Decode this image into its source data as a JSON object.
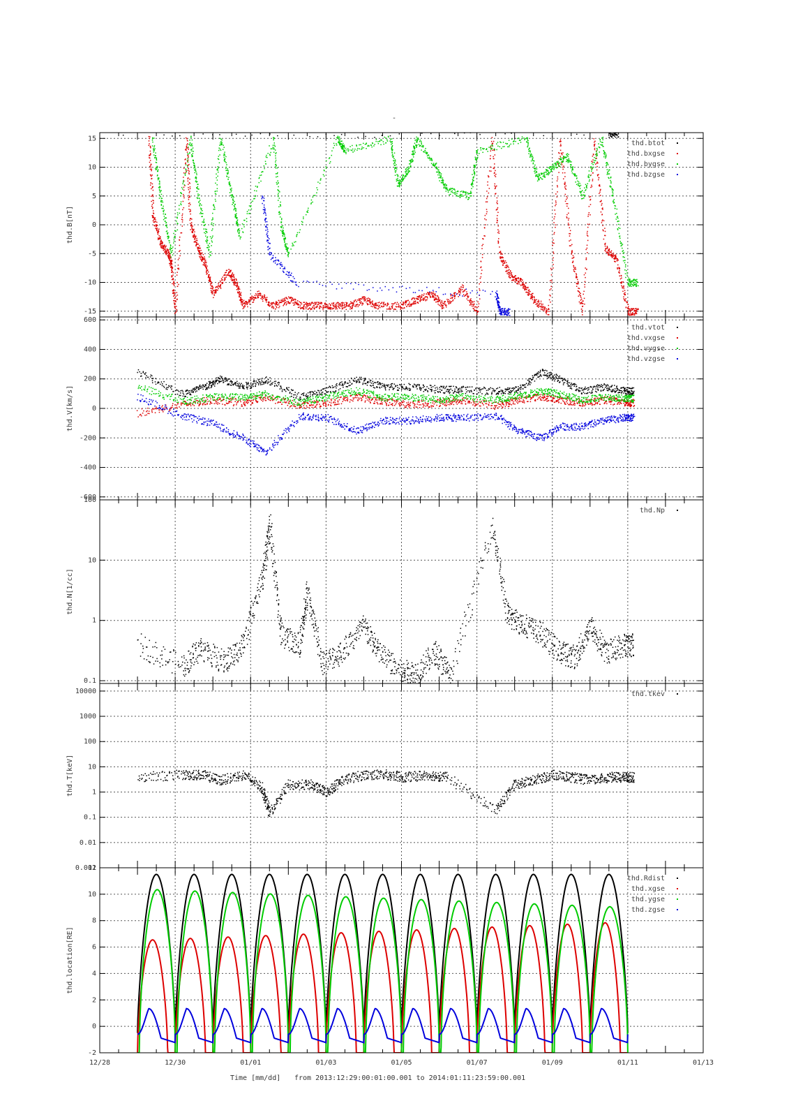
{
  "figure": {
    "title": "-",
    "footer": {
      "xaxis_label": "Time [mm/dd]",
      "range_text": "from 2013:12:29:00:01:00.001  to  2014:01:11:23:59:00.001"
    },
    "x_ticks": [
      "12/28",
      "12/30",
      "01/01",
      "01/03",
      "01/05",
      "01/07",
      "01/09",
      "01/11",
      "01/13"
    ]
  },
  "colors": {
    "black": "#000000",
    "red": "#dd0000",
    "green": "#00cc00",
    "blue": "#0000dd",
    "grid": "#555555"
  },
  "chart_data": [
    {
      "type": "scatter",
      "ylabel": "thd.B[nT]",
      "ylim": [
        -16,
        16
      ],
      "yticks": [
        "-15",
        "-10",
        "-5",
        "0",
        "5",
        "10",
        "15"
      ],
      "ytick_values": [
        -15,
        -10,
        -5,
        0,
        5,
        10,
        15
      ],
      "grid": true,
      "legend_position": "top-right",
      "series": [
        {
          "name": "thd.btot",
          "color": "#000000",
          "values": [
            [
              0.6,
              15.9
            ],
            [
              13.5,
              15.9
            ]
          ]
        },
        {
          "name": "thd.bxgse",
          "color": "#dd0000",
          "values": [
            [
              1.3,
              15
            ],
            [
              1.4,
              2
            ],
            [
              1.6,
              -3
            ],
            [
              1.8,
              -5
            ],
            [
              1.9,
              -7
            ],
            [
              2.0,
              -15
            ],
            [
              2.3,
              15
            ],
            [
              2.4,
              0
            ],
            [
              2.6,
              -4
            ],
            [
              2.8,
              -7
            ],
            [
              3.0,
              -12
            ],
            [
              3.4,
              -8
            ],
            [
              3.6,
              -10
            ],
            [
              3.8,
              -14
            ],
            [
              4.2,
              -12
            ],
            [
              4.6,
              -14
            ],
            [
              5.0,
              -13
            ],
            [
              5.4,
              -14
            ],
            [
              5.8,
              -14
            ],
            [
              6.2,
              -14
            ],
            [
              6.6,
              -14
            ],
            [
              7.0,
              -13
            ],
            [
              7.4,
              -14
            ],
            [
              8.0,
              -14
            ],
            [
              8.4,
              -13
            ],
            [
              8.8,
              -12
            ],
            [
              9.1,
              -14
            ],
            [
              9.6,
              -11
            ],
            [
              10.0,
              -15
            ],
            [
              10.4,
              15
            ],
            [
              10.6,
              -5
            ],
            [
              10.9,
              -9
            ],
            [
              11.2,
              -10
            ],
            [
              11.5,
              -13
            ],
            [
              11.9,
              -15
            ],
            [
              12.2,
              15
            ],
            [
              12.5,
              -5
            ],
            [
              12.8,
              -15
            ],
            [
              13.1,
              15
            ],
            [
              13.4,
              -4
            ],
            [
              13.7,
              -6
            ],
            [
              14.0,
              -15
            ]
          ]
        },
        {
          "name": "thd.bygse",
          "color": "#00cc00",
          "values": [
            [
              1.4,
              15
            ],
            [
              1.6,
              5
            ],
            [
              1.9,
              -5
            ],
            [
              2.4,
              15
            ],
            [
              2.6,
              5
            ],
            [
              2.9,
              -5
            ],
            [
              3.2,
              15
            ],
            [
              3.5,
              5
            ],
            [
              3.7,
              -2
            ],
            [
              4.6,
              15
            ],
            [
              4.8,
              0
            ],
            [
              5.0,
              -5
            ],
            [
              6.3,
              15
            ],
            [
              6.5,
              13
            ],
            [
              7.7,
              15
            ],
            [
              7.9,
              7
            ],
            [
              8.2,
              10
            ],
            [
              8.4,
              15
            ],
            [
              8.9,
              10
            ],
            [
              9.2,
              6
            ],
            [
              9.8,
              5
            ],
            [
              10.0,
              13
            ],
            [
              11.3,
              15
            ],
            [
              11.6,
              8
            ],
            [
              12.0,
              10
            ],
            [
              12.4,
              12
            ],
            [
              12.8,
              5
            ],
            [
              13.3,
              15
            ],
            [
              13.6,
              5
            ],
            [
              14.0,
              -10
            ]
          ]
        },
        {
          "name": "thd.bzgse",
          "color": "#0000dd",
          "values": [
            [
              4.3,
              5
            ],
            [
              4.5,
              -5
            ],
            [
              5.2,
              -10
            ],
            [
              10.5,
              -12
            ],
            [
              10.6,
              -15
            ]
          ]
        }
      ]
    },
    {
      "type": "scatter",
      "ylabel": "thd.V[km/s]",
      "ylim": [
        -620,
        620
      ],
      "yticks": [
        "-600",
        "-400",
        "-200",
        "0",
        "200",
        "400",
        "600"
      ],
      "ytick_values": [
        -600,
        -400,
        -200,
        0,
        200,
        400,
        600
      ],
      "grid": true,
      "legend_position": "top-right",
      "series": [
        {
          "name": "thd.vtot",
          "color": "#000000",
          "values": [
            [
              1.0,
              250
            ],
            [
              2.2,
              100
            ],
            [
              2.8,
              150
            ],
            [
              3.2,
              200
            ],
            [
              3.8,
              150
            ],
            [
              4.4,
              200
            ],
            [
              5.3,
              80
            ],
            [
              6.0,
              120
            ],
            [
              6.8,
              200
            ],
            [
              7.5,
              150
            ],
            [
              8.2,
              150
            ],
            [
              9.0,
              130
            ],
            [
              9.6,
              130
            ],
            [
              10.5,
              120
            ],
            [
              11.1,
              130
            ],
            [
              11.7,
              250
            ],
            [
              12.2,
              200
            ],
            [
              12.8,
              120
            ],
            [
              13.4,
              150
            ],
            [
              13.9,
              120
            ]
          ]
        },
        {
          "name": "thd.vxgse",
          "color": "#dd0000",
          "values": [
            [
              1.0,
              -30
            ],
            [
              2.2,
              30
            ],
            [
              3.0,
              60
            ],
            [
              3.8,
              40
            ],
            [
              4.4,
              80
            ],
            [
              5.3,
              20
            ],
            [
              6.0,
              40
            ],
            [
              6.8,
              80
            ],
            [
              7.5,
              50
            ],
            [
              8.2,
              30
            ],
            [
              9.0,
              40
            ],
            [
              9.6,
              60
            ],
            [
              10.5,
              20
            ],
            [
              11.1,
              60
            ],
            [
              11.7,
              80
            ],
            [
              12.2,
              60
            ],
            [
              12.8,
              40
            ],
            [
              13.4,
              60
            ],
            [
              13.9,
              40
            ]
          ]
        },
        {
          "name": "thd.vygse",
          "color": "#00cc00",
          "values": [
            [
              1.0,
              150
            ],
            [
              2.2,
              50
            ],
            [
              3.0,
              80
            ],
            [
              3.8,
              80
            ],
            [
              4.4,
              100
            ],
            [
              5.3,
              40
            ],
            [
              6.0,
              80
            ],
            [
              6.8,
              120
            ],
            [
              7.5,
              80
            ],
            [
              8.2,
              80
            ],
            [
              9.0,
              60
            ],
            [
              9.6,
              80
            ],
            [
              10.5,
              60
            ],
            [
              11.1,
              90
            ],
            [
              11.7,
              120
            ],
            [
              12.2,
              100
            ],
            [
              12.8,
              60
            ],
            [
              13.4,
              80
            ],
            [
              13.9,
              70
            ]
          ]
        },
        {
          "name": "thd.vzgse",
          "color": "#0000dd",
          "values": [
            [
              1.0,
              80
            ],
            [
              2.2,
              -50
            ],
            [
              3.0,
              -100
            ],
            [
              3.8,
              -200
            ],
            [
              4.4,
              -300
            ],
            [
              5.3,
              -50
            ],
            [
              6.0,
              -60
            ],
            [
              6.8,
              -150
            ],
            [
              7.5,
              -80
            ],
            [
              8.2,
              -80
            ],
            [
              9.0,
              -60
            ],
            [
              9.6,
              -60
            ],
            [
              10.5,
              -50
            ],
            [
              11.1,
              -150
            ],
            [
              11.7,
              -200
            ],
            [
              12.2,
              -120
            ],
            [
              12.8,
              -120
            ],
            [
              13.4,
              -80
            ],
            [
              13.9,
              -60
            ]
          ]
        }
      ]
    },
    {
      "type": "scatter",
      "ylabel": "thd.N[1/cc]",
      "yscale": "log",
      "ylim": [
        0.09,
        100
      ],
      "yticks": [
        "0.1",
        "1",
        "10",
        "100"
      ],
      "ytick_values": [
        0.1,
        1,
        10,
        100
      ],
      "grid": true,
      "legend_position": "top-right",
      "series": [
        {
          "name": "thd.Np",
          "color": "#000000",
          "values": [
            [
              1.0,
              0.4
            ],
            [
              2.2,
              0.18
            ],
            [
              2.7,
              0.35
            ],
            [
              3.3,
              0.2
            ],
            [
              3.8,
              0.4
            ],
            [
              4.3,
              5
            ],
            [
              4.5,
              40
            ],
            [
              4.8,
              0.6
            ],
            [
              5.3,
              0.4
            ],
            [
              5.5,
              3
            ],
            [
              5.9,
              0.2
            ],
            [
              6.4,
              0.3
            ],
            [
              7.0,
              0.8
            ],
            [
              7.4,
              0.3
            ],
            [
              8.0,
              0.14
            ],
            [
              8.4,
              0.14
            ],
            [
              8.9,
              0.3
            ],
            [
              9.3,
              0.12
            ],
            [
              10.4,
              40
            ],
            [
              10.8,
              1.2
            ],
            [
              11.2,
              0.9
            ],
            [
              11.7,
              0.6
            ],
            [
              12.2,
              0.3
            ],
            [
              12.6,
              0.25
            ],
            [
              13.0,
              0.8
            ],
            [
              13.4,
              0.3
            ],
            [
              13.9,
              0.4
            ]
          ]
        }
      ]
    },
    {
      "type": "scatter",
      "ylabel": "thd.T[keV]",
      "yscale": "log",
      "ylim": [
        0.001,
        20000
      ],
      "yticks": [
        "0.001",
        "0.01",
        "0.1",
        "1",
        "10",
        "100",
        "1000",
        "10000"
      ],
      "ytick_values": [
        0.001,
        0.01,
        0.1,
        1,
        10,
        100,
        1000,
        10000
      ],
      "grid": true,
      "legend_position": "top-right",
      "series": [
        {
          "name": "thd.tkev",
          "color": "#000000",
          "values": [
            [
              1.0,
              4
            ],
            [
              2.2,
              5
            ],
            [
              2.7,
              5
            ],
            [
              3.2,
              3
            ],
            [
              3.8,
              5
            ],
            [
              4.3,
              1.5
            ],
            [
              4.5,
              0.15
            ],
            [
              5.0,
              2
            ],
            [
              5.6,
              2
            ],
            [
              6.0,
              1
            ],
            [
              6.4,
              3
            ],
            [
              7.0,
              5
            ],
            [
              7.6,
              5
            ],
            [
              8.1,
              4
            ],
            [
              8.7,
              5
            ],
            [
              9.2,
              4
            ],
            [
              10.5,
              0.2
            ],
            [
              11.0,
              2
            ],
            [
              11.5,
              3
            ],
            [
              12.0,
              5
            ],
            [
              12.5,
              4
            ],
            [
              13.0,
              3
            ],
            [
              13.5,
              4
            ],
            [
              13.9,
              4
            ]
          ]
        }
      ]
    },
    {
      "type": "line",
      "ylabel": "thd.location[RE]",
      "ylim": [
        -2,
        12
      ],
      "yticks": [
        "-2",
        "0",
        "2",
        "4",
        "6",
        "8",
        "10",
        "12"
      ],
      "ytick_values": [
        -2,
        0,
        2,
        4,
        6,
        8,
        10,
        12
      ],
      "grid": true,
      "legend_position": "top-right",
      "orbit_period_days": 1.0,
      "orbit_start_day": 1.0,
      "orbit_end_day": 14.0,
      "series": [
        {
          "name": "thd.Rdist",
          "color": "#000000",
          "apogee": 11.5,
          "perigee": -0.5
        },
        {
          "name": "thd.xgse",
          "color": "#dd0000",
          "apogee_start": 6.5,
          "apogee_end": 7.9,
          "perigee": -2
        },
        {
          "name": "thd.ygse",
          "color": "#00cc00",
          "apogee_start": 10.4,
          "apogee_end": 9.0,
          "perigee": -2
        },
        {
          "name": "thd.zgse",
          "color": "#0000dd",
          "apogee": 1.35,
          "perigee": -0.6
        }
      ]
    }
  ]
}
